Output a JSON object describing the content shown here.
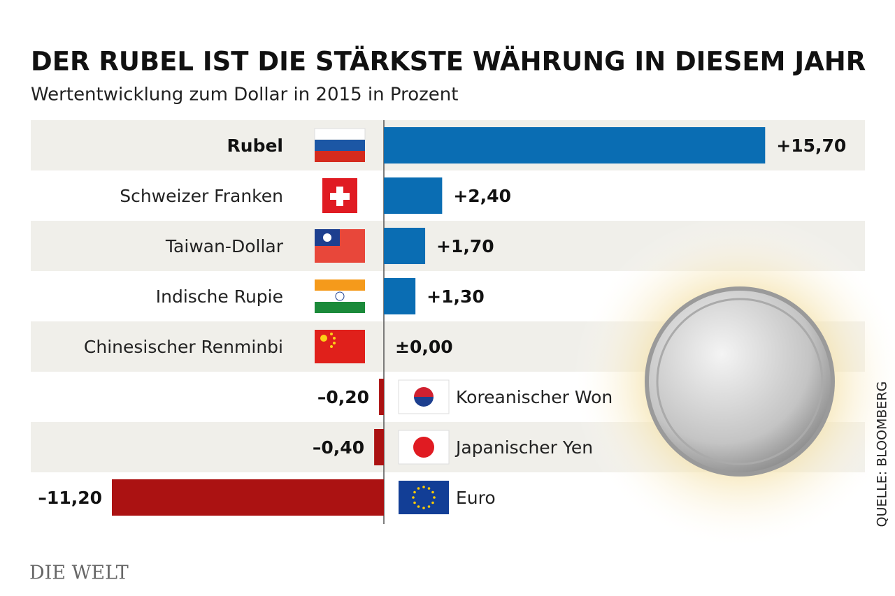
{
  "chart_data": {
    "type": "bar",
    "orientation": "horizontal",
    "title": "DER RUBEL IST DIE STÄRKSTE WÄHRUNG IN DIESEM JAHR",
    "subtitle": "Wertentwicklung zum Dollar in 2015 in Prozent",
    "categories": [
      "Rubel",
      "Schweizer Franken",
      "Taiwan-Dollar",
      "Indische Rupie",
      "Chinesischer Renminbi",
      "Koreanischer Won",
      "Japanischer Yen",
      "Euro"
    ],
    "values": [
      15.7,
      2.4,
      1.7,
      1.3,
      0,
      -0.2,
      -0.4,
      -11.2
    ],
    "value_labels": [
      "+15,70",
      "+2,40",
      "+1,70",
      "+1,30",
      "±0,00",
      "–0,20",
      "–0,40",
      "–11,20"
    ],
    "positive_color": "#0a6db3",
    "negative_color": "#ab1212"
  },
  "source": "QUELLE: BLOOMBERG",
  "logo": "DIE WELT"
}
